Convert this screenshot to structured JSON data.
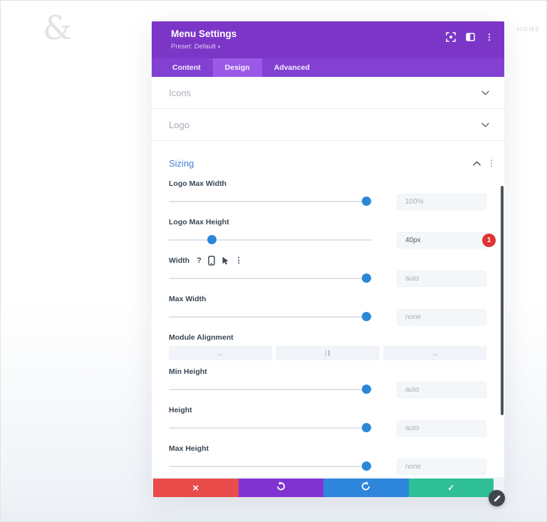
{
  "page": {
    "ampersand": "&",
    "home_label": "HOME"
  },
  "modal": {
    "title": "Menu Settings",
    "preset_label": "Preset: Default",
    "active_tab": "Design",
    "tabs": [
      {
        "label": "Content"
      },
      {
        "label": "Design"
      },
      {
        "label": "Advanced"
      }
    ],
    "collapsed_sections": [
      {
        "label": "Icons"
      },
      {
        "label": "Logo"
      }
    ],
    "sizing": {
      "title": "Sizing",
      "rows": [
        {
          "label": "Logo Max Width",
          "value": "100%",
          "thumb_percent": 97
        },
        {
          "label": "Logo Max Height",
          "value": "40px",
          "thumb_percent": 21,
          "badge": "1"
        },
        {
          "label": "Width",
          "value": "auto",
          "thumb_percent": 97,
          "hover_icons": [
            "help-icon",
            "responsive-phone-icon",
            "hover-cursor-icon",
            "options-dots-icon"
          ]
        },
        {
          "label": "Max Width",
          "value": "none",
          "thumb_percent": 97
        },
        {
          "label": "Module Alignment",
          "alignment_options": [
            "align-left",
            "align-center",
            "align-right"
          ]
        },
        {
          "label": "Min Height",
          "value": "auto",
          "thumb_percent": 97
        },
        {
          "label": "Height",
          "value": "auto",
          "thumb_percent": 97
        },
        {
          "label": "Max Height",
          "value": "none",
          "thumb_percent": 97
        }
      ]
    },
    "header_icons": [
      "expand-modal-icon",
      "layout-column-icon",
      "more-options-icon"
    ],
    "footer_icons": [
      "discard-x-icon",
      "undo-icon",
      "redo-icon",
      "save-check-icon"
    ]
  },
  "colors": {
    "header_purple": "#7b36c8",
    "tabbar_purple": "#8341d3",
    "active_tab_purple": "#9c59e8",
    "accent_blue": "#2b87da",
    "sizing_title_blue": "#3f7fd9",
    "badge_red": "#dd3333",
    "discard_red": "#ea4c4c",
    "undo_purple": "#8133d1",
    "redo_blue": "#2e86dc",
    "save_green": "#2fbf96"
  }
}
